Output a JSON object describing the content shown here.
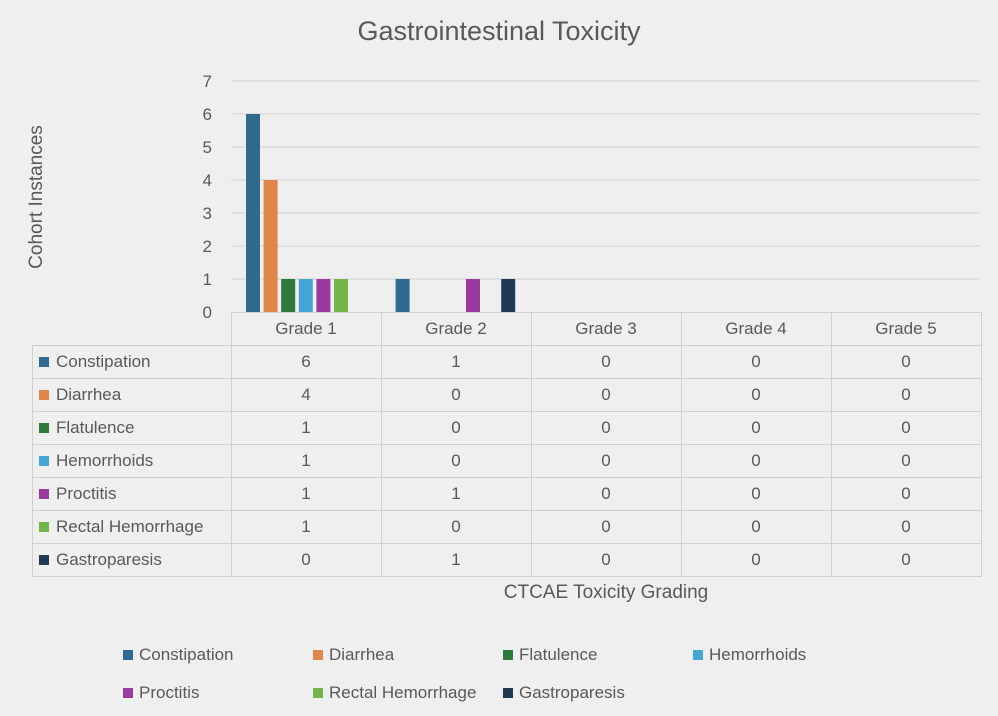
{
  "chart_data": {
    "type": "bar",
    "title": "Gastrointestinal Toxicity",
    "xlabel": "CTCAE Toxicity Grading",
    "ylabel": "Cohort Instances",
    "ylim": [
      0,
      7
    ],
    "yticks": [
      0,
      1,
      2,
      3,
      4,
      5,
      6,
      7
    ],
    "grid": true,
    "legend_position": "bottom",
    "data_table": true,
    "categories": [
      "Grade 1",
      "Grade 2",
      "Grade 3",
      "Grade 4",
      "Grade 5"
    ],
    "series": [
      {
        "name": "Constipation",
        "color": "#2f6b8e",
        "values": [
          6,
          1,
          0,
          0,
          0
        ]
      },
      {
        "name": "Diarrhea",
        "color": "#e0864a",
        "values": [
          4,
          0,
          0,
          0,
          0
        ]
      },
      {
        "name": "Flatulence",
        "color": "#2e7a3a",
        "values": [
          1,
          0,
          0,
          0,
          0
        ]
      },
      {
        "name": "Hemorrhoids",
        "color": "#45a6d6",
        "values": [
          1,
          0,
          0,
          0,
          0
        ]
      },
      {
        "name": "Proctitis",
        "color": "#9b3a9e",
        "values": [
          1,
          1,
          0,
          0,
          0
        ]
      },
      {
        "name": "Rectal Hemorrhage",
        "color": "#72b64b",
        "values": [
          1,
          0,
          0,
          0,
          0
        ]
      },
      {
        "name": "Gastroparesis",
        "color": "#1f3a52",
        "values": [
          0,
          1,
          0,
          0,
          0
        ]
      }
    ]
  }
}
